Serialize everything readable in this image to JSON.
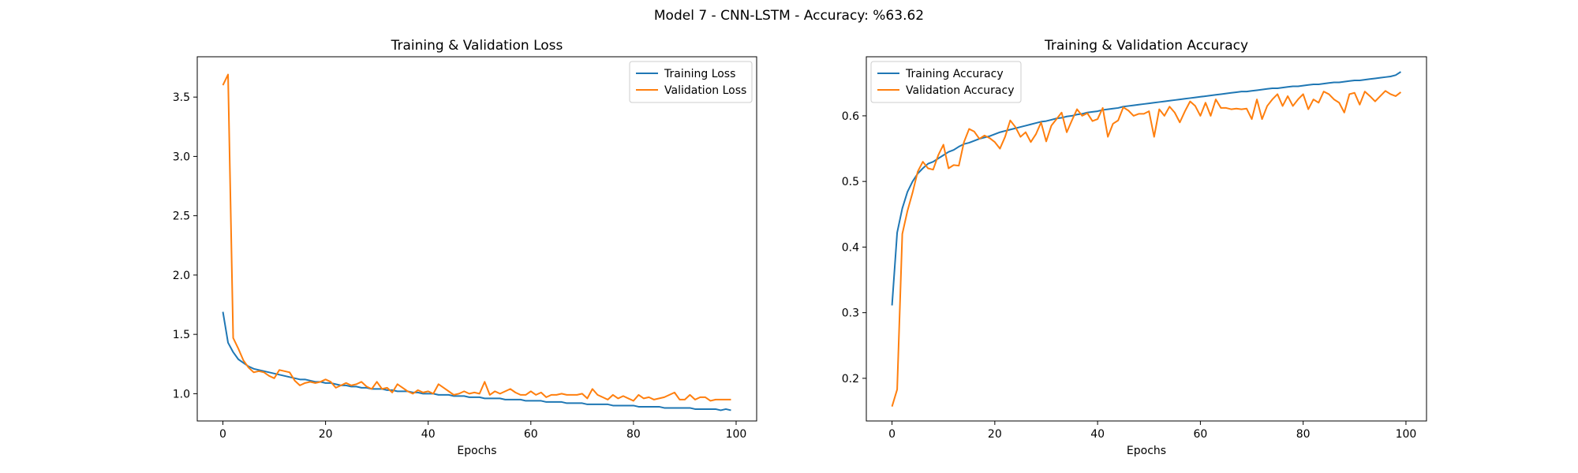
{
  "figure": {
    "title": "Model 7 - CNN-LSTM - Accuracy: %63.62"
  },
  "chart_data": [
    {
      "type": "line",
      "title": "Training & Validation Loss",
      "xlabel": "Epochs",
      "ylabel": "",
      "xlim": [
        -5,
        104
      ],
      "ylim": [
        0.77,
        3.84
      ],
      "xticks": [
        0,
        20,
        40,
        60,
        80,
        100
      ],
      "yticks": [
        1.0,
        1.5,
        2.0,
        2.5,
        3.0,
        3.5
      ],
      "ytick_format": 1,
      "grid": false,
      "legend": "top-right",
      "series": [
        {
          "name": "Training Loss",
          "color": "#1f77b4",
          "values": [
            1.69,
            1.43,
            1.35,
            1.29,
            1.26,
            1.23,
            1.21,
            1.2,
            1.19,
            1.18,
            1.17,
            1.16,
            1.15,
            1.14,
            1.13,
            1.12,
            1.12,
            1.11,
            1.1,
            1.1,
            1.09,
            1.09,
            1.08,
            1.07,
            1.07,
            1.06,
            1.06,
            1.05,
            1.05,
            1.04,
            1.04,
            1.04,
            1.03,
            1.03,
            1.02,
            1.02,
            1.02,
            1.01,
            1.01,
            1.0,
            1.0,
            1.0,
            0.99,
            0.99,
            0.99,
            0.98,
            0.98,
            0.98,
            0.97,
            0.97,
            0.97,
            0.96,
            0.96,
            0.96,
            0.96,
            0.95,
            0.95,
            0.95,
            0.95,
            0.94,
            0.94,
            0.94,
            0.94,
            0.93,
            0.93,
            0.93,
            0.93,
            0.92,
            0.92,
            0.92,
            0.92,
            0.91,
            0.91,
            0.91,
            0.91,
            0.91,
            0.9,
            0.9,
            0.9,
            0.9,
            0.9,
            0.89,
            0.89,
            0.89,
            0.89,
            0.89,
            0.88,
            0.88,
            0.88,
            0.88,
            0.88,
            0.88,
            0.87,
            0.87,
            0.87,
            0.87,
            0.87,
            0.86,
            0.87,
            0.86
          ]
        },
        {
          "name": "Validation Loss",
          "color": "#ff7f0e",
          "values": [
            3.6,
            3.69,
            1.47,
            1.38,
            1.28,
            1.22,
            1.18,
            1.19,
            1.18,
            1.15,
            1.13,
            1.2,
            1.19,
            1.18,
            1.11,
            1.07,
            1.09,
            1.1,
            1.09,
            1.1,
            1.12,
            1.1,
            1.05,
            1.07,
            1.09,
            1.07,
            1.08,
            1.1,
            1.06,
            1.04,
            1.1,
            1.04,
            1.05,
            1.01,
            1.08,
            1.05,
            1.02,
            1.0,
            1.03,
            1.01,
            1.02,
            1.0,
            1.08,
            1.05,
            1.02,
            0.99,
            1.0,
            1.02,
            1.0,
            1.01,
            1.0,
            1.1,
            0.99,
            1.02,
            1.0,
            1.02,
            1.04,
            1.01,
            0.99,
            0.99,
            1.02,
            0.99,
            1.01,
            0.97,
            0.99,
            0.99,
            1.0,
            0.99,
            0.99,
            0.99,
            1.0,
            0.96,
            1.04,
            0.99,
            0.97,
            0.95,
            0.99,
            0.96,
            0.98,
            0.96,
            0.94,
            0.99,
            0.96,
            0.97,
            0.95,
            0.96,
            0.97,
            0.99,
            1.01,
            0.95,
            0.95,
            0.99,
            0.95,
            0.97,
            0.97,
            0.94,
            0.95,
            0.95,
            0.95,
            0.95
          ]
        }
      ]
    },
    {
      "type": "line",
      "title": "Training & Validation Accuracy",
      "xlabel": "Epochs",
      "ylabel": "",
      "xlim": [
        -5,
        104
      ],
      "ylim": [
        0.135,
        0.69
      ],
      "xticks": [
        0,
        20,
        40,
        60,
        80,
        100
      ],
      "yticks": [
        0.2,
        0.3,
        0.4,
        0.5,
        0.6
      ],
      "ytick_format": 1,
      "grid": false,
      "legend": "top-left",
      "series": [
        {
          "name": "Training Accuracy",
          "color": "#1f77b4",
          "values": [
            0.311,
            0.422,
            0.459,
            0.484,
            0.5,
            0.512,
            0.52,
            0.527,
            0.53,
            0.535,
            0.54,
            0.545,
            0.548,
            0.553,
            0.557,
            0.559,
            0.562,
            0.565,
            0.567,
            0.569,
            0.572,
            0.575,
            0.577,
            0.579,
            0.581,
            0.583,
            0.585,
            0.587,
            0.589,
            0.591,
            0.592,
            0.594,
            0.596,
            0.597,
            0.599,
            0.6,
            0.602,
            0.603,
            0.605,
            0.606,
            0.607,
            0.609,
            0.61,
            0.611,
            0.612,
            0.614,
            0.615,
            0.616,
            0.617,
            0.618,
            0.619,
            0.62,
            0.621,
            0.622,
            0.623,
            0.624,
            0.625,
            0.626,
            0.627,
            0.628,
            0.629,
            0.63,
            0.631,
            0.632,
            0.633,
            0.634,
            0.635,
            0.636,
            0.637,
            0.637,
            0.638,
            0.639,
            0.64,
            0.641,
            0.642,
            0.642,
            0.643,
            0.644,
            0.645,
            0.645,
            0.646,
            0.647,
            0.648,
            0.648,
            0.649,
            0.65,
            0.651,
            0.651,
            0.652,
            0.653,
            0.654,
            0.654,
            0.655,
            0.656,
            0.657,
            0.658,
            0.659,
            0.66,
            0.662,
            0.667
          ]
        },
        {
          "name": "Validation Accuracy",
          "color": "#ff7f0e",
          "values": [
            0.157,
            0.183,
            0.42,
            0.455,
            0.483,
            0.515,
            0.53,
            0.52,
            0.518,
            0.54,
            0.556,
            0.52,
            0.525,
            0.524,
            0.56,
            0.58,
            0.576,
            0.565,
            0.57,
            0.566,
            0.56,
            0.55,
            0.568,
            0.593,
            0.583,
            0.568,
            0.575,
            0.56,
            0.572,
            0.59,
            0.561,
            0.585,
            0.595,
            0.605,
            0.575,
            0.593,
            0.61,
            0.6,
            0.604,
            0.592,
            0.595,
            0.612,
            0.568,
            0.588,
            0.593,
            0.613,
            0.608,
            0.6,
            0.603,
            0.603,
            0.607,
            0.568,
            0.61,
            0.6,
            0.614,
            0.605,
            0.59,
            0.607,
            0.622,
            0.615,
            0.6,
            0.62,
            0.6,
            0.625,
            0.612,
            0.612,
            0.61,
            0.611,
            0.61,
            0.611,
            0.595,
            0.625,
            0.595,
            0.615,
            0.625,
            0.633,
            0.615,
            0.63,
            0.615,
            0.625,
            0.633,
            0.61,
            0.625,
            0.62,
            0.637,
            0.633,
            0.625,
            0.62,
            0.605,
            0.633,
            0.635,
            0.617,
            0.637,
            0.63,
            0.622,
            0.63,
            0.638,
            0.633,
            0.63,
            0.636
          ]
        }
      ]
    }
  ]
}
